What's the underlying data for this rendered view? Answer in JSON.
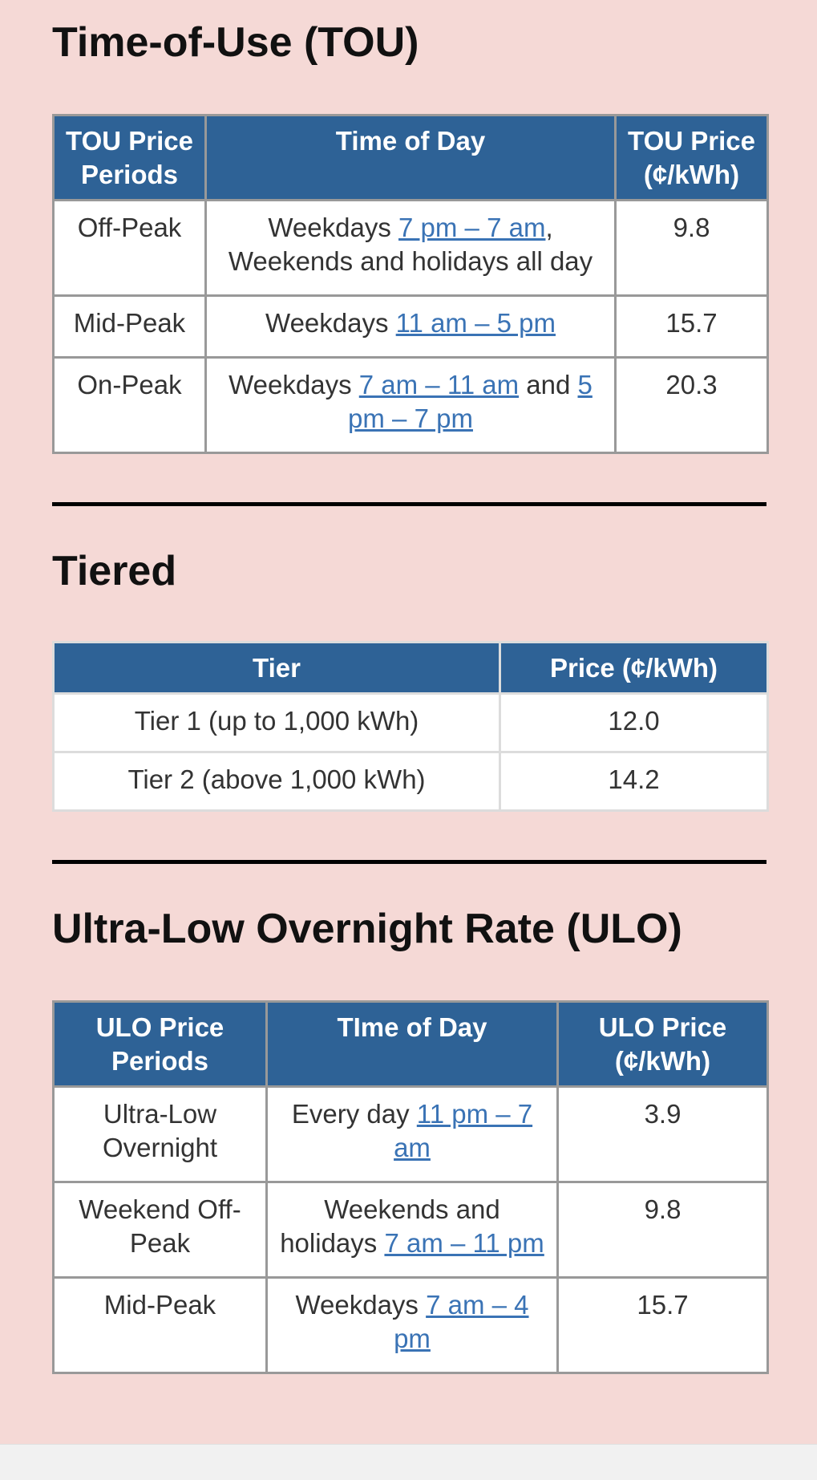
{
  "sections": [
    {
      "title": "Time-of-Use (TOU)",
      "header": [
        "TOU Price Periods",
        "Time of Day",
        "TOU Price (¢/kWh)"
      ],
      "rows": [
        [
          [
            {
              "text": "Off-Peak"
            }
          ],
          [
            {
              "text": "Weekdays "
            },
            {
              "link": "7 pm – 7 am"
            },
            {
              "text": ", Weekends and holidays all day"
            }
          ],
          [
            {
              "text": "9.8"
            }
          ]
        ],
        [
          [
            {
              "text": "Mid-Peak"
            }
          ],
          [
            {
              "text": "Weekdays "
            },
            {
              "link": "11 am – 5 pm"
            }
          ],
          [
            {
              "text": "15.7"
            }
          ]
        ],
        [
          [
            {
              "text": "On-Peak"
            }
          ],
          [
            {
              "text": "Weekdays "
            },
            {
              "link": "7 am – 11 am"
            },
            {
              "text": " and "
            },
            {
              "link": "5 pm – 7 pm"
            }
          ],
          [
            {
              "text": "20.3"
            }
          ]
        ]
      ]
    },
    {
      "title": "Tiered",
      "header": [
        "Tier",
        "Price (¢/kWh)"
      ],
      "rows": [
        [
          [
            {
              "text": "Tier 1 (up to 1,000 kWh)"
            }
          ],
          [
            {
              "text": "12.0"
            }
          ]
        ],
        [
          [
            {
              "text": "Tier 2 (above 1,000 kWh)"
            }
          ],
          [
            {
              "text": "14.2"
            }
          ]
        ]
      ]
    },
    {
      "title": "Ultra-Low Overnight Rate (ULO)",
      "header": [
        "ULO Price Periods",
        "TIme of Day",
        "ULO Price (¢/kWh)"
      ],
      "rows": [
        [
          [
            {
              "text": "Ultra-Low Overnight"
            }
          ],
          [
            {
              "text": "Every day "
            },
            {
              "link": "11 pm – 7 am"
            }
          ],
          [
            {
              "text": "3.9"
            }
          ]
        ],
        [
          [
            {
              "text": "Weekend Off-Peak"
            }
          ],
          [
            {
              "text": "Weekends and holidays "
            },
            {
              "link": "7 am – 11 pm"
            }
          ],
          [
            {
              "text": "9.8"
            }
          ]
        ],
        [
          [
            {
              "text": "Mid-Peak"
            }
          ],
          [
            {
              "text": "Weekdays "
            },
            {
              "link": "7 am – 4 pm"
            }
          ],
          [
            {
              "text": "15.7"
            }
          ]
        ]
      ]
    }
  ]
}
